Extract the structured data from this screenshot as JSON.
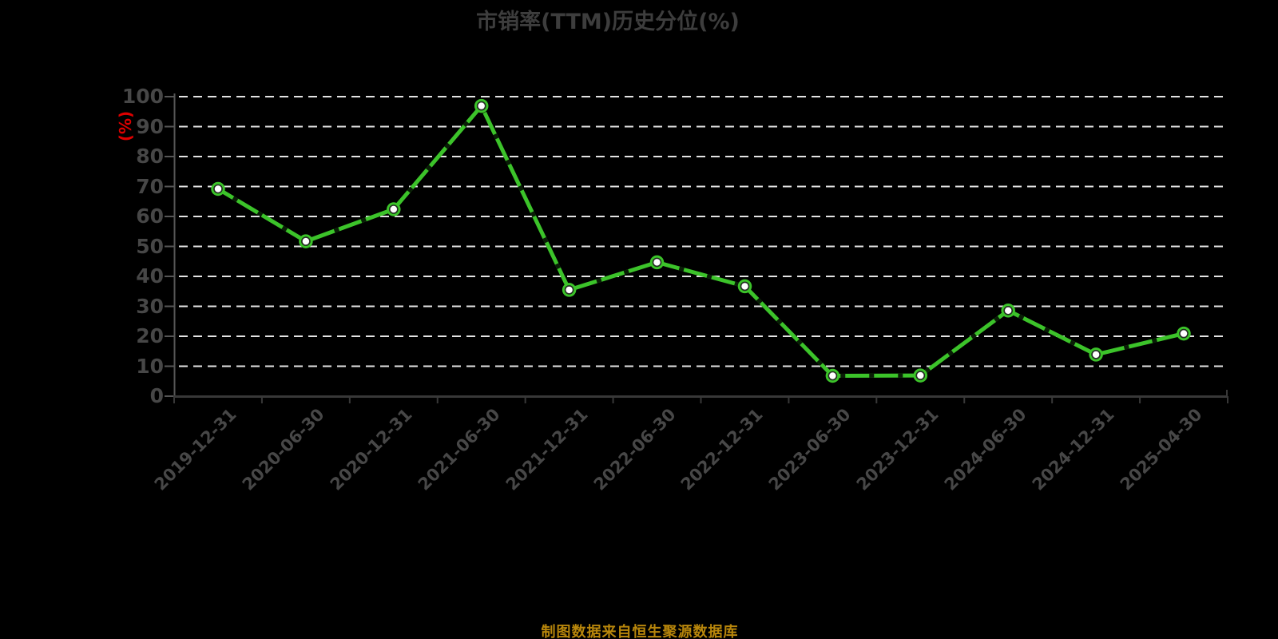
{
  "header": {
    "title": "市销率(TTM)历史分位(%)"
  },
  "y_axis": {
    "unit_label": "(%)"
  },
  "footer": {
    "text": "制图数据来自恒生聚源数据库"
  },
  "colors": {
    "background": "#000000",
    "title": "#3d3d3d",
    "tick_label": "#474747",
    "unit_label": "#dd0000",
    "footer": "#b8860b",
    "grid": "#e3e3e3",
    "axis_x": "#383838",
    "axis_y": "#565656",
    "line": "#3cc32a",
    "line_overlay_dash": "#000000",
    "marker_fill": "#ffffff",
    "marker_ring": "#0a0a0a"
  },
  "chart_data": {
    "type": "line",
    "title": "市销率(TTM)历史分位(%)",
    "categories": [
      "2019-12-31",
      "2020-06-30",
      "2020-12-31",
      "2021-06-30",
      "2021-12-31",
      "2022-06-30",
      "2022-12-31",
      "2023-06-30",
      "2023-12-31",
      "2024-06-30",
      "2024-12-31",
      "2025-04-30"
    ],
    "series": [
      {
        "name": "市销率(TTM)历史分位(%)",
        "values": [
          69.2,
          51.7,
          62.4,
          96.9,
          35.5,
          44.7,
          36.7,
          6.8,
          6.9,
          28.6,
          13.9,
          20.9
        ]
      }
    ],
    "xlabel": "",
    "ylabel": "(%)",
    "ylim": [
      0,
      100
    ],
    "y_ticks": [
      0,
      10,
      20,
      30,
      40,
      50,
      60,
      70,
      80,
      90,
      100
    ],
    "grid": "horizontal-dashed",
    "legend": "none",
    "marker": "circle-white-green-ring"
  }
}
